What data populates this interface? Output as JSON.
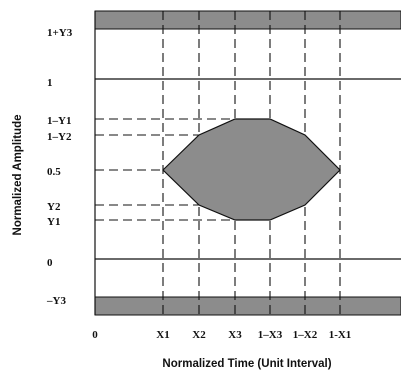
{
  "diagram": {
    "x_axis_title": "Normalized Time (Unit Interval)",
    "y_axis_title": "Normalized Amplitude",
    "x_ticks": [
      "0",
      "X1",
      "X2",
      "X3",
      "1–X3",
      "1–X2",
      "1-X1"
    ],
    "y_ticks": [
      "1+Y3",
      "1",
      "1–Y1",
      "1–Y2",
      "0.5",
      "Y2",
      "Y1",
      "0",
      "–Y3"
    ],
    "colors": {
      "mask_fill": "#8c8c8c",
      "line": "#111111",
      "background": "#ffffff"
    }
  }
}
